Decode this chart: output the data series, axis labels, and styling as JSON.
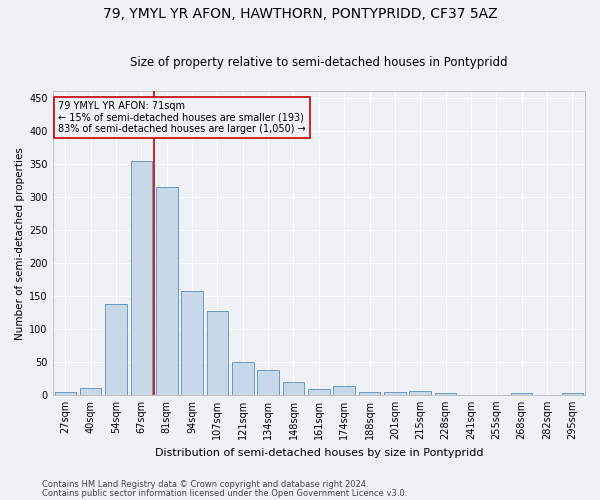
{
  "title": "79, YMYL YR AFON, HAWTHORN, PONTYPRIDD, CF37 5AZ",
  "subtitle": "Size of property relative to semi-detached houses in Pontypridd",
  "xlabel": "Distribution of semi-detached houses by size in Pontypridd",
  "ylabel": "Number of semi-detached properties",
  "categories": [
    "27sqm",
    "40sqm",
    "54sqm",
    "67sqm",
    "81sqm",
    "94sqm",
    "107sqm",
    "121sqm",
    "134sqm",
    "148sqm",
    "161sqm",
    "174sqm",
    "188sqm",
    "201sqm",
    "215sqm",
    "228sqm",
    "241sqm",
    "255sqm",
    "268sqm",
    "282sqm",
    "295sqm"
  ],
  "values": [
    5,
    10,
    138,
    355,
    315,
    158,
    127,
    50,
    38,
    20,
    9,
    13,
    5,
    5,
    6,
    2,
    0,
    0,
    3,
    0,
    2
  ],
  "bar_color": "#c8d8e8",
  "bar_edge_color": "#5b8db8",
  "property_label": "79 YMYL YR AFON: 71sqm",
  "smaller_pct": 15,
  "smaller_count": 193,
  "larger_pct": 83,
  "larger_count": 1050,
  "property_bar_index": 3,
  "red_line_color": "#cc0000",
  "ylim": [
    0,
    460
  ],
  "yticks": [
    0,
    50,
    100,
    150,
    200,
    250,
    300,
    350,
    400,
    450
  ],
  "footer1": "Contains HM Land Registry data © Crown copyright and database right 2024.",
  "footer2": "Contains public sector information licensed under the Open Government Licence v3.0.",
  "bg_color": "#eef2f7",
  "grid_color": "#ffffff",
  "title_fontsize": 10,
  "subtitle_fontsize": 8.5,
  "tick_fontsize": 7,
  "ylabel_fontsize": 7.5,
  "xlabel_fontsize": 8,
  "footer_fontsize": 6,
  "annot_fontsize": 7
}
